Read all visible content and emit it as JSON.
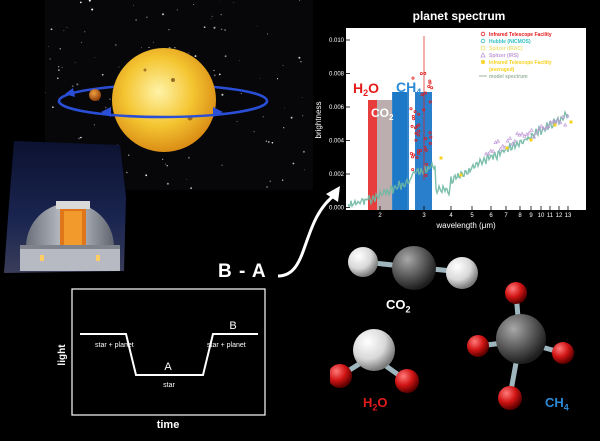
{
  "spectrum": {
    "title": "planet spectrum",
    "ylabel": "brightness",
    "xlabel_prefix": "wavelength (",
    "xlabel_unit": "μm",
    "xlabel_suffix": ")",
    "yticks": [
      "0.010",
      "0.008",
      "0.006",
      "0.004",
      "0.002",
      "0.000"
    ],
    "xticks_minor": [
      "2",
      "3",
      "4",
      "5",
      "6",
      "7",
      "8",
      "9",
      "10",
      "11",
      "12",
      "13"
    ],
    "band_labels": {
      "h2o": "H",
      "h2o_sub": "2",
      "h2o_o": "O",
      "co2": "CO",
      "co2_sub": "2",
      "ch4": "CH",
      "ch4_sub": "4"
    },
    "legend": [
      {
        "label": "Infrared Telescope Facility",
        "color": "#e31b1b",
        "marker": "circle-open"
      },
      {
        "label": "Hubble (NICMOS)",
        "color": "#33c0c0",
        "marker": "circle-open"
      },
      {
        "label": "Spitzer (IRAC)",
        "color": "#f0e27a",
        "marker": "square-open"
      },
      {
        "label": "Spitzer (IRS)",
        "color": "#c09ad8",
        "marker": "triangle-open"
      },
      {
        "label": "Infrared Telescope Facility",
        "color": "#f7d21e",
        "marker": "square-filled"
      },
      {
        "label": "(averaged)",
        "color": "#f7d21e",
        "marker": "none"
      },
      {
        "label": "model spectrum",
        "color": "#9bb59b",
        "marker": "line"
      }
    ]
  },
  "ba_label": "B - A",
  "lightcurve": {
    "ylabel": "light",
    "xlabel": "time",
    "label_a": "A",
    "label_b": "B",
    "left_level": "star + planet",
    "right_level": "star + planet",
    "bottom_level": "star"
  },
  "molecules": {
    "co2": {
      "prefix": "CO",
      "sub": "2"
    },
    "h2o": {
      "prefix": "H",
      "sub": "2",
      "suffix": "O"
    },
    "ch4": {
      "prefix": "CH",
      "sub": "4"
    }
  },
  "colors": {
    "h2o": "#e31b1b",
    "co2": "#777777",
    "ch4": "#1e78c8",
    "orbit": "#2a4fd6",
    "star": "#f4c531",
    "lightcurve_frame": "#ffffff"
  },
  "icons": [
    "star-icon",
    "planet-icon",
    "observatory-icon",
    "arrow-icon",
    "co2-molecule-icon",
    "h2o-molecule-icon",
    "ch4-molecule-icon"
  ]
}
